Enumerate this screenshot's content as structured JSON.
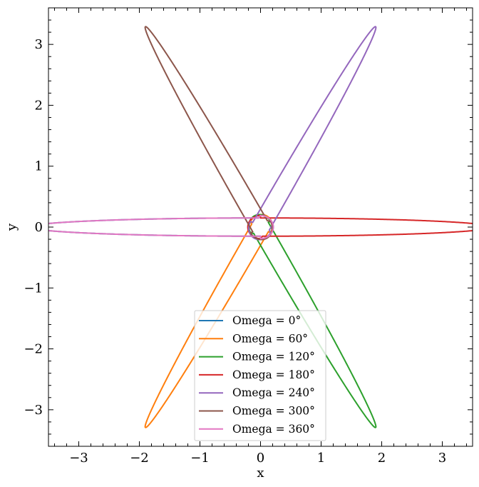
{
  "chart_data": {
    "type": "line",
    "xlabel": "x",
    "ylabel": "y",
    "xlim": [
      -3.5,
      3.5
    ],
    "ylim": [
      -3.6,
      3.6
    ],
    "xticks": [
      -3,
      -2,
      -1,
      0,
      1,
      2,
      3
    ],
    "yticks": [
      -3,
      -2,
      -1,
      0,
      1,
      2,
      3
    ],
    "tick_labels_x": [
      "−3",
      "−2",
      "−1",
      "0",
      "1",
      "2",
      "3"
    ],
    "tick_labels_y": [
      "−3",
      "−2",
      "−1",
      "0",
      "1",
      "2",
      "3"
    ],
    "grid": false,
    "legend_position": "bottom-center",
    "curve_shape": {
      "outer_tip_x": 3.8,
      "outer_half_width": 0.15,
      "inner_tip_x": -0.21,
      "inner_half_width": 0.19
    },
    "series": [
      {
        "name": "Omega = 0°",
        "rotation_deg": 180,
        "color": "#1f77b4"
      },
      {
        "name": "Omega = 60°",
        "rotation_deg": 240,
        "color": "#ff7f0e"
      },
      {
        "name": "Omega = 120°",
        "rotation_deg": 300,
        "color": "#2ca02c"
      },
      {
        "name": "Omega = 180°",
        "rotation_deg": 0,
        "color": "#d62728"
      },
      {
        "name": "Omega = 240°",
        "rotation_deg": 60,
        "color": "#9467bd"
      },
      {
        "name": "Omega = 300°",
        "rotation_deg": 120,
        "color": "#8c564b"
      },
      {
        "name": "Omega = 360°",
        "rotation_deg": 180,
        "color": "#e377c2"
      }
    ]
  }
}
